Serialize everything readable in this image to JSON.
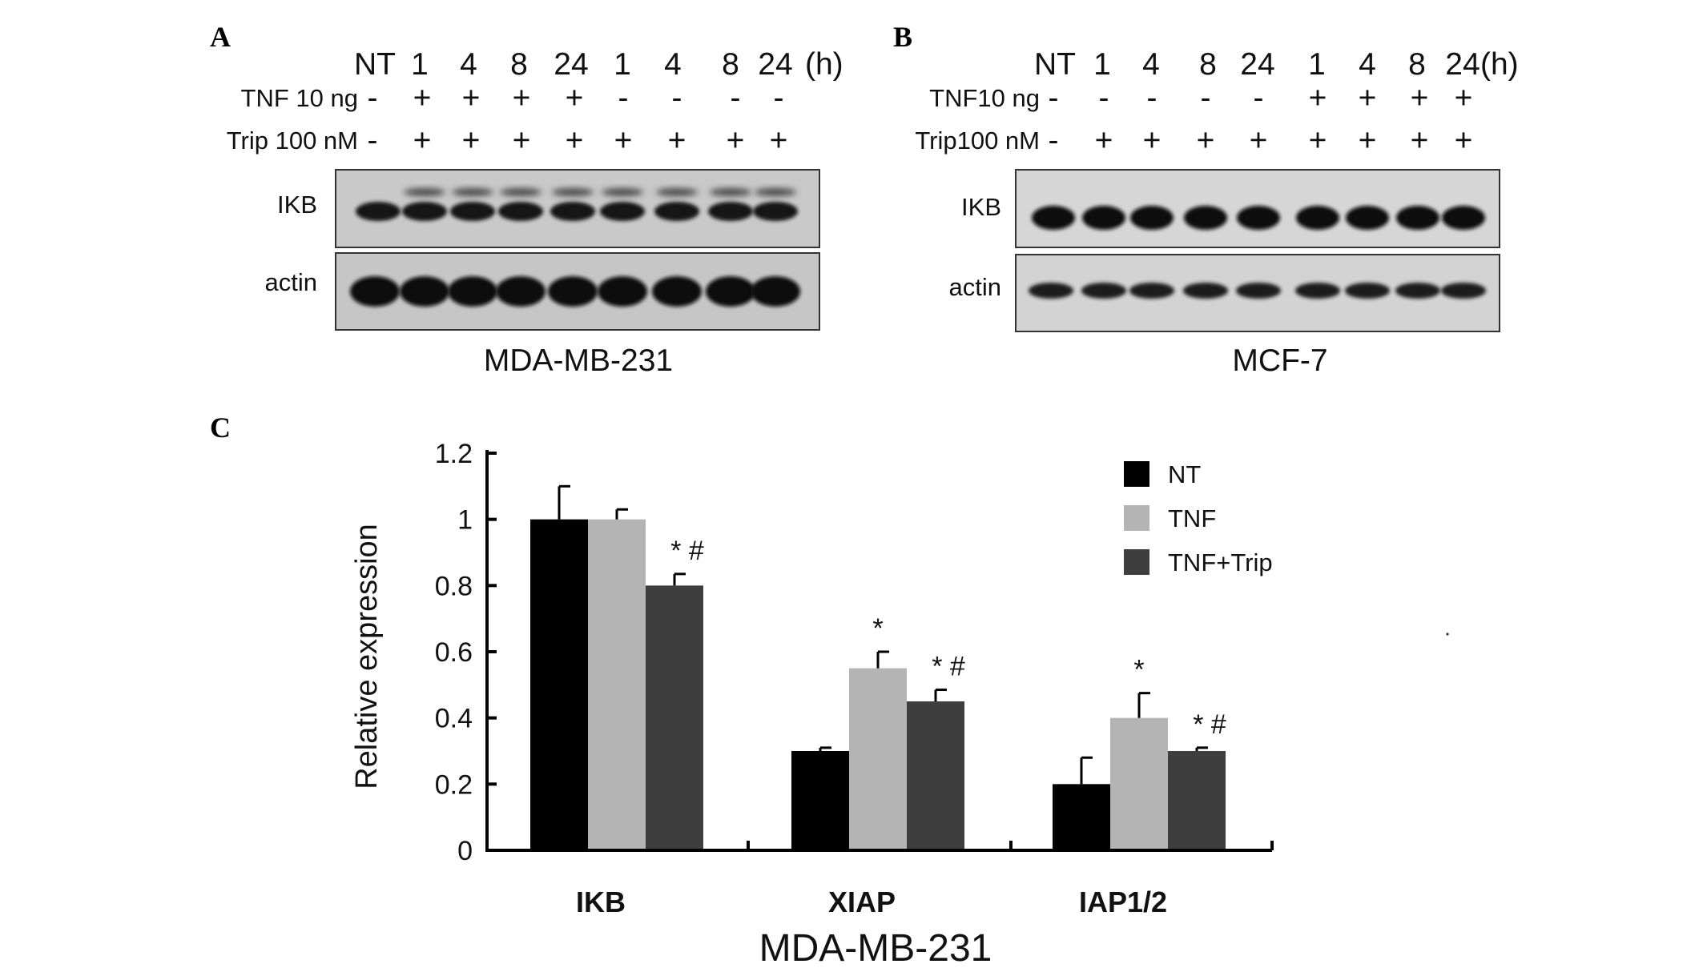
{
  "panel_a": {
    "letter": "A",
    "time_labels": [
      "NT",
      "1",
      "4",
      "8",
      "24",
      "1",
      "4",
      "8",
      "24"
    ],
    "unit": "(h)",
    "rows": [
      {
        "label": "TNF 10 ng",
        "signs": [
          "-",
          "+",
          "+",
          "+",
          "+",
          "-",
          "-",
          "-",
          "-"
        ]
      },
      {
        "label": "Trip 100 nM",
        "signs": [
          "-",
          "+",
          "+",
          "+",
          "+",
          "+",
          "+",
          "+",
          "+"
        ]
      }
    ],
    "blot_labels": [
      "IKB",
      "actin"
    ],
    "cell_line": "MDA-MB-231"
  },
  "panel_b": {
    "letter": "B",
    "time_labels": [
      "NT",
      "1",
      "4",
      "8",
      "24",
      "1",
      "4",
      "8",
      "24"
    ],
    "unit": "(h)",
    "rows": [
      {
        "label": "TNF10 ng",
        "signs": [
          "-",
          "-",
          "-",
          "-",
          "-",
          "+",
          "+",
          "+",
          "+"
        ]
      },
      {
        "label": "Trip100 nM",
        "signs": [
          "-",
          "+",
          "+",
          "+",
          "+",
          "+",
          "+",
          "+",
          "+"
        ]
      }
    ],
    "blot_labels": [
      "IKB",
      "actin"
    ],
    "cell_line": "MCF-7"
  },
  "panel_c": {
    "letter": "C"
  },
  "colors": {
    "NT": "#000000",
    "TNF": "#b4b4b4",
    "TNF+Trip": "#3e3e3e"
  },
  "chart_data": {
    "type": "bar",
    "categories": [
      "IKB",
      "XIAP",
      "IAP1/2"
    ],
    "series": [
      {
        "name": "NT",
        "values": [
          1.0,
          0.3,
          0.2
        ],
        "errors": [
          0.1,
          0.01,
          0.08
        ]
      },
      {
        "name": "TNF",
        "values": [
          1.0,
          0.55,
          0.4
        ],
        "errors": [
          0.03,
          0.05,
          0.075
        ]
      },
      {
        "name": "TNF+Trip",
        "values": [
          0.8,
          0.45,
          0.3
        ],
        "errors": [
          0.035,
          0.035,
          0.01
        ]
      }
    ],
    "annotations": [
      {
        "category": "IKB",
        "series": "TNF+Trip",
        "text": "* #"
      },
      {
        "category": "XIAP",
        "series": "TNF",
        "text": "*"
      },
      {
        "category": "XIAP",
        "series": "TNF+Trip",
        "text": "* #"
      },
      {
        "category": "IAP1/2",
        "series": "TNF",
        "text": "*"
      },
      {
        "category": "IAP1/2",
        "series": "TNF+Trip",
        "text": "* #"
      }
    ],
    "ylabel": "Relative expression",
    "xlabel": "MDA-MB-231",
    "ylim": [
      0,
      1.2
    ],
    "yticks": [
      "0",
      "0.2",
      "0.4",
      "0.6",
      "0.8",
      "1",
      "1.2"
    ],
    "legend_position": "top-right",
    "grid": false
  }
}
